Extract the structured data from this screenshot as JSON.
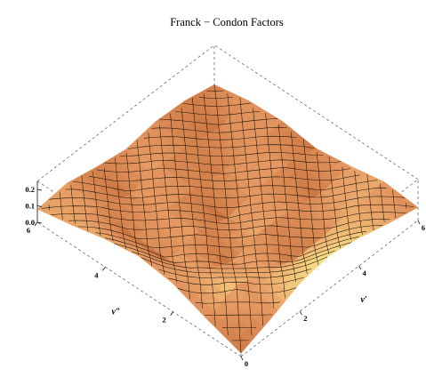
{
  "chart_data": {
    "type": "surface3d",
    "title": "Franck − Condon Factors",
    "x_axis": {
      "label": "v′",
      "ticks": [
        "0",
        "2",
        "4",
        "6"
      ],
      "range": [
        0,
        6
      ]
    },
    "y_axis": {
      "label": "v″",
      "ticks": [
        "2",
        "4",
        "6"
      ],
      "range": [
        0,
        6
      ]
    },
    "z_axis": {
      "ticks": [
        "0.0",
        "0.1",
        "0.2"
      ],
      "range": [
        0,
        0.25
      ]
    },
    "grid_x": [
      0,
      1,
      2,
      3,
      4,
      5,
      6
    ],
    "grid_y": [
      0,
      1,
      2,
      3,
      4,
      5,
      6
    ],
    "z_values": [
      [
        0.02,
        0.09,
        0.17,
        0.2,
        0.17,
        0.12,
        0.08
      ],
      [
        0.09,
        0.16,
        0.1,
        0.04,
        0.05,
        0.09,
        0.1
      ],
      [
        0.17,
        0.1,
        0.03,
        0.08,
        0.07,
        0.03,
        0.06
      ],
      [
        0.2,
        0.04,
        0.08,
        0.02,
        0.06,
        0.07,
        0.03
      ],
      [
        0.17,
        0.05,
        0.07,
        0.06,
        0.03,
        0.05,
        0.06
      ],
      [
        0.12,
        0.09,
        0.03,
        0.07,
        0.05,
        0.02,
        0.05
      ],
      [
        0.08,
        0.1,
        0.06,
        0.03,
        0.06,
        0.05,
        0.01
      ]
    ],
    "colorscale": [
      "#8a4a22",
      "#c26a35",
      "#e49660",
      "#f3c47a",
      "#f8ec8c"
    ]
  }
}
